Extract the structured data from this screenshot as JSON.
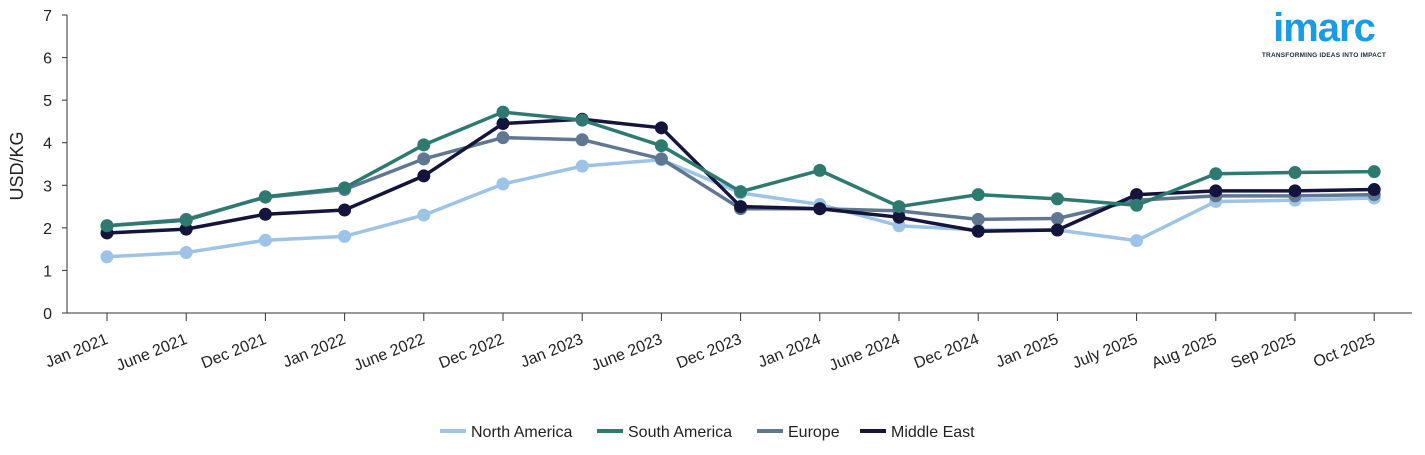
{
  "logo": {
    "word": "imarc",
    "tagline": "TRANSFORMING IDEAS INTO IMPACT"
  },
  "chart_data": {
    "type": "line",
    "title": "",
    "xlabel": "",
    "ylabel": "USD/KG",
    "ylim": [
      0,
      7
    ],
    "yticks": [
      0,
      1,
      2,
      3,
      4,
      5,
      6,
      7
    ],
    "grid": false,
    "legend_position": "bottom-center",
    "categories": [
      "Jan 2021",
      "June 2021",
      "Dec 2021",
      "Jan 2022",
      "June 2022",
      "Dec 2022",
      "Jan 2023",
      "June 2023",
      "Dec 2023",
      "Jan 2024",
      "June 2024",
      "Dec 2024",
      "Jan 2025",
      "July 2025",
      "Aug 2025",
      "Sep 2025",
      "Oct 2025"
    ],
    "series": [
      {
        "name": "North America",
        "color": "#9dc3e6",
        "values": [
          1.32,
          1.42,
          1.71,
          1.8,
          2.3,
          3.03,
          3.45,
          3.6,
          2.82,
          2.55,
          2.05,
          1.95,
          1.95,
          1.7,
          2.62,
          2.65,
          2.7
        ]
      },
      {
        "name": "Europe",
        "color": "#5f7790",
        "values": [
          2.05,
          2.2,
          2.72,
          2.9,
          3.62,
          4.12,
          4.07,
          3.62,
          2.45,
          2.45,
          2.4,
          2.2,
          2.22,
          2.65,
          2.75,
          2.75,
          2.78
        ]
      },
      {
        "name": "Middle East",
        "color": "#14143c",
        "values": [
          1.88,
          1.97,
          2.32,
          2.42,
          3.22,
          4.45,
          4.55,
          4.35,
          2.5,
          2.45,
          2.25,
          1.92,
          1.95,
          2.78,
          2.87,
          2.87,
          2.9
        ]
      },
      {
        "name": "South America",
        "color": "#2e7a70",
        "values": [
          2.05,
          2.18,
          2.73,
          2.94,
          3.95,
          4.72,
          4.53,
          3.93,
          2.85,
          3.35,
          2.5,
          2.78,
          2.68,
          2.53,
          3.27,
          3.3,
          3.32
        ]
      }
    ],
    "legend_order": [
      "North America",
      "South America",
      "Europe",
      "Middle East"
    ]
  }
}
